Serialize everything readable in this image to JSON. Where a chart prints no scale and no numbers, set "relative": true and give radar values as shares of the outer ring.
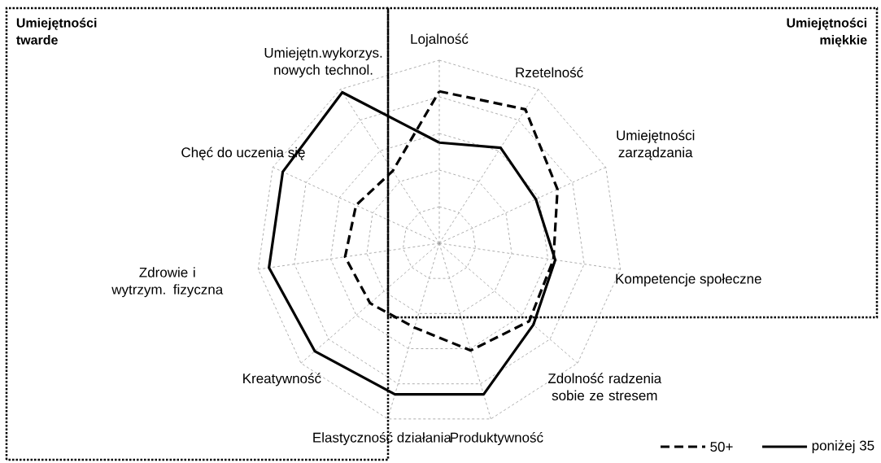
{
  "chart_data": {
    "type": "radar",
    "relative": true,
    "grid": true,
    "legend": "bottom right",
    "categories": [
      "Lojalność",
      "Rzetelność",
      "Umiejętności zarządzania",
      "Kompetencje społeczne",
      "Zdolność radzenia sobie ze stresem",
      "Produktywność",
      "Elastyczność działania",
      "Kreatywność",
      "Zdrowie i wytrzym. fizyczna",
      "Chęć do uczenia się",
      "Umiejętn.wykorzys. nowych technol."
    ],
    "series": [
      {
        "name": "50+",
        "color": "#000000",
        "line_style": "dashed",
        "values": [
          0.83,
          0.87,
          0.71,
          0.63,
          0.65,
          0.61,
          0.48,
          0.5,
          0.52,
          0.5,
          0.47
        ]
      },
      {
        "name": "poniżej 35",
        "color": "#000000",
        "line_style": "solid",
        "values": [
          0.55,
          0.62,
          0.58,
          0.64,
          0.68,
          0.86,
          0.86,
          0.9,
          0.94,
          0.94,
          0.98
        ]
      }
    ],
    "annotations": [
      "Umiejętności twarde",
      "Umiejętności miękkie"
    ]
  }
}
